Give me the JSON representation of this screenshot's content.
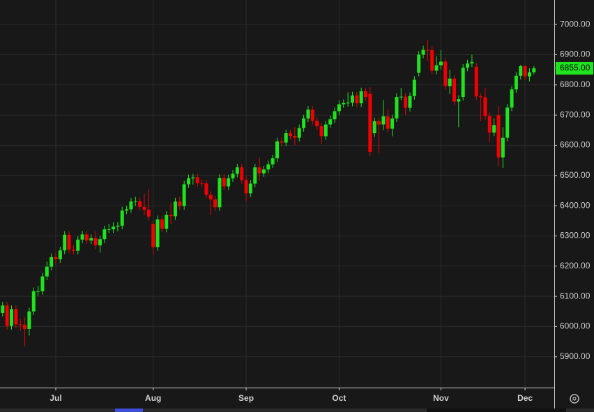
{
  "chart_data": {
    "type": "candlestick",
    "categories": [
      null,
      null,
      null,
      null,
      null,
      null,
      null,
      null,
      null,
      null,
      null,
      null,
      "Jul",
      null,
      null,
      null,
      null,
      null,
      null,
      null,
      null,
      null,
      null,
      null,
      null,
      null,
      null,
      null,
      null,
      null,
      null,
      null,
      null,
      null,
      "Aug",
      null,
      null,
      null,
      null,
      null,
      null,
      null,
      null,
      null,
      null,
      null,
      null,
      null,
      null,
      null,
      null,
      null,
      null,
      null,
      null,
      "Sep",
      null,
      null,
      null,
      null,
      null,
      null,
      null,
      null,
      null,
      null,
      null,
      null,
      null,
      null,
      null,
      null,
      null,
      null,
      null,
      null,
      "Oct",
      null,
      null,
      null,
      null,
      null,
      null,
      null,
      null,
      null,
      null,
      null,
      null,
      null,
      null,
      null,
      null,
      null,
      null,
      null,
      null,
      null,
      null,
      "Nov",
      null,
      null,
      null,
      null,
      null,
      null,
      null,
      null,
      null,
      null,
      null,
      null,
      null,
      null,
      null,
      null,
      null,
      null,
      "Dec",
      null,
      null
    ],
    "open": [
      6045,
      6070,
      6002,
      6058,
      6007,
      6006,
      5992,
      6050,
      6117,
      6117,
      6166,
      6198,
      6230,
      6223,
      6252,
      6304,
      6255,
      6251,
      6288,
      6305,
      6285,
      6293,
      6269,
      6289,
      6322,
      6322,
      6331,
      6334,
      6384,
      6388,
      6414,
      6415,
      6396,
      6387,
      6340,
      6263,
      6355,
      6324,
      6370,
      6365,
      6414,
      6399,
      6471,
      6491,
      6494,
      6475,
      6474,
      6436,
      6421,
      6395,
      6492,
      6464,
      6491,
      6506,
      6527,
      6485,
      6441,
      6473,
      6527,
      6507,
      6520,
      6537,
      6557,
      6613,
      6609,
      6640,
      6631,
      6625,
      6657,
      6689,
      6718,
      6681,
      6663,
      6630,
      6669,
      6686,
      6713,
      6736,
      6740,
      6741,
      6765,
      6739,
      6779,
      6770,
      6640,
      6680,
      6669,
      6696,
      6655,
      6689,
      6760,
      6761,
      6724,
      6763,
      6840,
      6900,
      6916,
      6915,
      6847,
      6865,
      6877,
      6796,
      6821,
      6745,
      6760,
      6857,
      6871,
      6860,
      6762,
      6759,
      6697,
      6642,
      6700,
      6560,
      6625,
      6725,
      6785,
      6830,
      6862,
      6828,
      6842
    ],
    "high": [
      6082,
      6082,
      6070,
      6070,
      6025,
      6030,
      6062,
      6129,
      6135,
      6178,
      6215,
      6242,
      6245,
      6264,
      6316,
      6316,
      6270,
      6300,
      6317,
      6317,
      6305,
      6315,
      6301,
      6334,
      6340,
      6345,
      6346,
      6396,
      6400,
      6426,
      6430,
      6427,
      6440,
      6455,
      6352,
      6367,
      6367,
      6382,
      6410,
      6426,
      6430,
      6483,
      6503,
      6506,
      6506,
      6487,
      6486,
      6448,
      6433,
      6504,
      6504,
      6503,
      6518,
      6539,
      6539,
      6497,
      6485,
      6539,
      6560,
      6532,
      6549,
      6569,
      6625,
      6625,
      6652,
      6652,
      6660,
      6669,
      6701,
      6730,
      6730,
      6693,
      6675,
      6681,
      6698,
      6725,
      6748,
      6752,
      6775,
      6777,
      6777,
      6791,
      6791,
      6792,
      6692,
      6692,
      6750,
      6720,
      6701,
      6772,
      6790,
      6773,
      6775,
      6829,
      6912,
      6930,
      6950,
      6927,
      6895,
      6915,
      6889,
      6850,
      6833,
      6765,
      6869,
      6883,
      6900,
      6872,
      6771,
      6790,
      6709,
      6690,
      6730,
      6660,
      6737,
      6797,
      6842,
      6866,
      6866,
      6855,
      6862
    ],
    "low": [
      6033,
      5990,
      5990,
      5995,
      5985,
      5935,
      5970,
      6038,
      6100,
      6105,
      6154,
      6186,
      6205,
      6211,
      6240,
      6243,
      6239,
      6239,
      6276,
      6273,
      6273,
      6257,
      6245,
      6277,
      6310,
      6310,
      6315,
      6322,
      6372,
      6376,
      6400,
      6384,
      6370,
      6352,
      6240,
      6251,
      6312,
      6312,
      6340,
      6353,
      6387,
      6387,
      6459,
      6470,
      6463,
      6462,
      6424,
      6370,
      6383,
      6383,
      6452,
      6452,
      6479,
      6494,
      6473,
      6415,
      6429,
      6461,
      6485,
      6495,
      6508,
      6525,
      6545,
      6597,
      6597,
      6619,
      6600,
      6613,
      6645,
      6677,
      6669,
      6651,
      6605,
      6618,
      6657,
      6674,
      6701,
      6724,
      6728,
      6729,
      6727,
      6727,
      6748,
      6565,
      6628,
      6575,
      6650,
      6643,
      6630,
      6677,
      6749,
      6700,
      6712,
      6751,
      6828,
      6888,
      6880,
      6835,
      6835,
      6850,
      6784,
      6770,
      6733,
      6660,
      6748,
      6845,
      6859,
      6750,
      6680,
      6685,
      6610,
      6630,
      6530,
      6525,
      6613,
      6713,
      6773,
      6818,
      6816,
      6812,
      6835
    ],
    "close": [
      6070,
      6002,
      6058,
      6007,
      6006,
      5992,
      6050,
      6117,
      6117,
      6166,
      6198,
      6230,
      6223,
      6252,
      6304,
      6255,
      6251,
      6288,
      6305,
      6285,
      6293,
      6269,
      6289,
      6322,
      6322,
      6331,
      6334,
      6384,
      6388,
      6414,
      6415,
      6396,
      6387,
      6364,
      6263,
      6355,
      6324,
      6370,
      6365,
      6414,
      6399,
      6471,
      6491,
      6494,
      6475,
      6474,
      6436,
      6421,
      6395,
      6492,
      6464,
      6491,
      6506,
      6527,
      6485,
      6441,
      6473,
      6527,
      6507,
      6520,
      6537,
      6557,
      6613,
      6609,
      6640,
      6631,
      6625,
      6657,
      6689,
      6718,
      6681,
      6663,
      6630,
      6669,
      6686,
      6713,
      6736,
      6740,
      6741,
      6765,
      6739,
      6779,
      6760,
      6578,
      6680,
      6669,
      6696,
      6655,
      6689,
      6760,
      6761,
      6724,
      6763,
      6817,
      6900,
      6916,
      6915,
      6847,
      6865,
      6877,
      6796,
      6821,
      6745,
      6753,
      6857,
      6871,
      6876,
      6762,
      6759,
      6697,
      6642,
      6667,
      6560,
      6625,
      6725,
      6785,
      6830,
      6862,
      6828,
      6842,
      6855
    ],
    "up_color": "#1ee31e",
    "down_color": "#f00000",
    "last_price": {
      "value": 6855,
      "label": "6855.00"
    },
    "ylim": [
      5798,
      7081
    ],
    "yticks": [
      {
        "value": 5900,
        "label": "5900.00"
      },
      {
        "value": 6000,
        "label": "6000.00"
      },
      {
        "value": 6100,
        "label": "6100.00"
      },
      {
        "value": 6200,
        "label": "6200.00"
      },
      {
        "value": 6300,
        "label": "6300.00"
      },
      {
        "value": 6400,
        "label": "6400.00"
      },
      {
        "value": 6500,
        "label": "6500.00"
      },
      {
        "value": 6600,
        "label": "6600.00"
      },
      {
        "value": 6700,
        "label": "6700.00"
      },
      {
        "value": 6800,
        "label": "6800.00"
      },
      {
        "value": 6900,
        "label": "6900.00"
      },
      {
        "value": 7000,
        "label": "7000.00"
      }
    ],
    "grid": true
  }
}
